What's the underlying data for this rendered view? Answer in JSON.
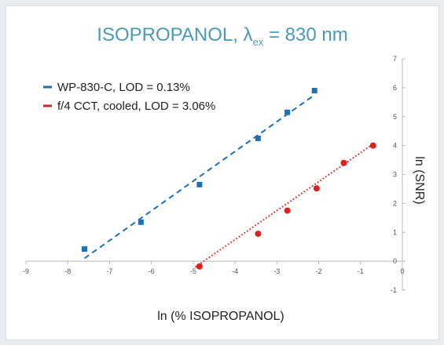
{
  "chart_data": {
    "type": "scatter",
    "title": "ISOPROPANOL, λ",
    "title_subscript": "ex",
    "title_suffix": " = 830 nm",
    "xlabel": "ln (% ISOPROPANOL)",
    "ylabel": "ln (SNR)",
    "xlim": [
      -9,
      0
    ],
    "ylim": [
      -1,
      7
    ],
    "x_ticks": [
      -9,
      -8,
      -7,
      -6,
      -5,
      -4,
      -3,
      -2,
      -1,
      0
    ],
    "y_ticks": [
      -1,
      0,
      1,
      2,
      3,
      4,
      5,
      6,
      7
    ],
    "grid": false,
    "legend_position": "top-left",
    "series": [
      {
        "name": "WP-830-C, LOD = 0.13%",
        "color": "#1f6fb5",
        "marker": "square",
        "trendline": "dashed",
        "trend": [
          [
            -7.6,
            0.1
          ],
          [
            -2.1,
            5.75
          ]
        ],
        "points": [
          [
            -7.6,
            0.42
          ],
          [
            -6.25,
            1.35
          ],
          [
            -4.85,
            2.65
          ],
          [
            -3.45,
            4.25
          ],
          [
            -2.75,
            5.15
          ],
          [
            -2.1,
            5.9
          ]
        ]
      },
      {
        "name": "f/4 CCT, cooled, LOD = 3.06%",
        "color": "#e0201b",
        "marker": "circle",
        "trendline": "dotted",
        "trend": [
          [
            -4.95,
            -0.2
          ],
          [
            -0.7,
            4.05
          ]
        ],
        "points": [
          [
            -4.85,
            -0.18
          ],
          [
            -3.45,
            0.95
          ],
          [
            -2.75,
            1.75
          ],
          [
            -2.05,
            2.52
          ],
          [
            -1.4,
            3.4
          ],
          [
            -0.7,
            4.0
          ]
        ]
      }
    ]
  }
}
